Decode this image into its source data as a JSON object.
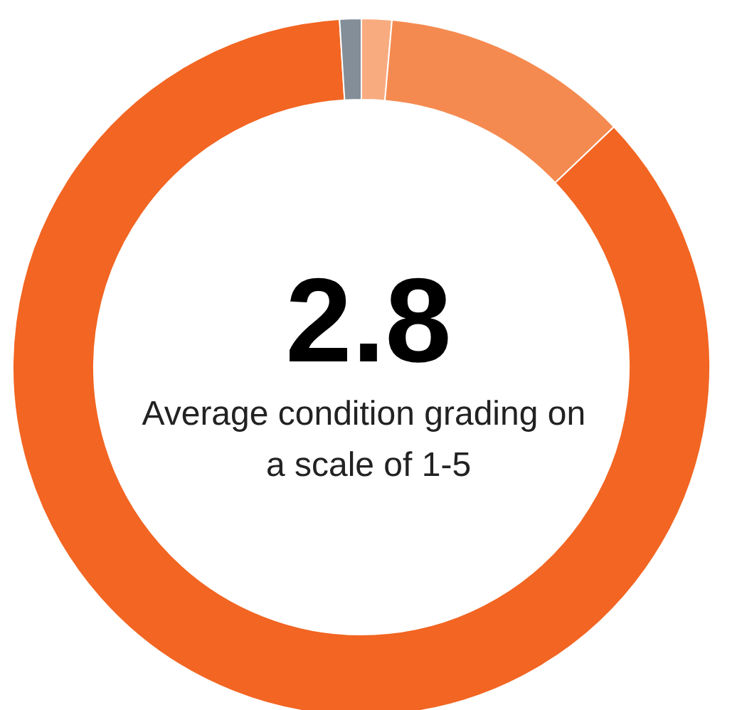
{
  "chart_data": {
    "type": "donut",
    "title": "2.8",
    "subtitle": "Average condition grading on a scale of 1-5",
    "categories": [
      null,
      null,
      null,
      null
    ],
    "values": [
      1.4,
      11.5,
      86.1,
      1.0
    ],
    "colors": [
      "#f9ab80",
      "#f58a50",
      "#f26522",
      "#838e98"
    ]
  }
}
